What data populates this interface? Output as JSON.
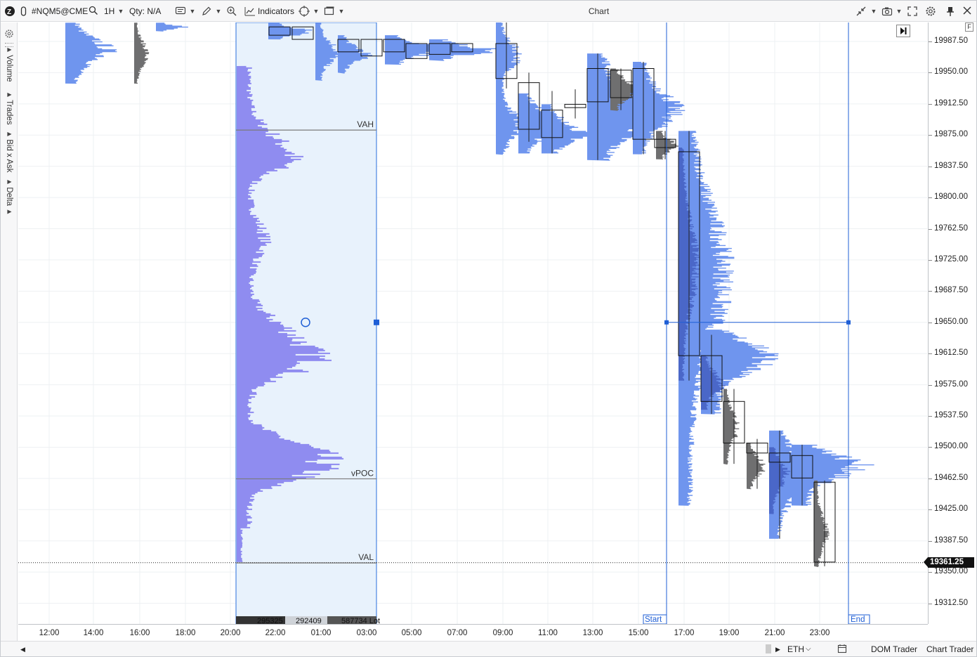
{
  "toolbar": {
    "symbol": "#NQM5@CME",
    "timeframe": "1H",
    "qty_label": "Qty: N/A",
    "indicators_label": "Indicators",
    "chart_title": "Chart"
  },
  "left_panel": {
    "tabs": [
      "Volume",
      "Trades",
      "Bid x Ask",
      "Delta"
    ]
  },
  "price_axis": {
    "ticks": [
      "19987.50",
      "19950.00",
      "19912.50",
      "19875.00",
      "19837.50",
      "19800.00",
      "19762.50",
      "19725.00",
      "19687.50",
      "19650.00",
      "19612.50",
      "19575.00",
      "19537.50",
      "19500.00",
      "19462.50",
      "19425.00",
      "19387.50",
      "19350.00",
      "19312.50"
    ],
    "tick_values": [
      19987.5,
      19950,
      19912.5,
      19875,
      19837.5,
      19800,
      19762.5,
      19725,
      19687.5,
      19650,
      19612.5,
      19575,
      19537.5,
      19500,
      19462.5,
      19425,
      19387.5,
      19350,
      19312.5
    ],
    "current_price": "19361.25",
    "current_price_value": 19361.25
  },
  "time_axis": {
    "ticks": [
      "12:00",
      "14:00",
      "16:00",
      "18:00",
      "20:00",
      "22:00",
      "01:00",
      "03:00",
      "05:00",
      "07:00",
      "09:00",
      "11:00",
      "13:00",
      "15:00",
      "17:00",
      "19:00",
      "21:00",
      "23:00"
    ]
  },
  "profile": {
    "vah_label": "VAH",
    "vpoc_label": "vPOC",
    "val_label": "VAL",
    "vah_price": 19881,
    "vpoc_price": 19462,
    "val_price": 19361,
    "footer_left": "295325",
    "footer_mid": "292409",
    "footer_right": "587734 Lot"
  },
  "range_markers": {
    "start_label": "Start",
    "end_label": "End",
    "level_price": 19650
  },
  "statusbar": {
    "session": "ETH",
    "dom_trader": "DOM Trader",
    "chart_trader": "Chart Trader"
  },
  "colors": {
    "profile_fill": "#8f8cf0",
    "bar_profile": "#6f95ee",
    "gray_profile": "#6f6f70",
    "selection_bg": "#e8f2fc",
    "line_blue": "#1f5fd6"
  },
  "candles": [
    {
      "t": "09:00",
      "o": 19985,
      "c": 19943,
      "h": 20011,
      "l": 19931
    },
    {
      "t": "10:00",
      "o": 19938,
      "c": 19882,
      "h": 19950,
      "l": 19867
    },
    {
      "t": "10:00b",
      "o": 19905,
      "c": 19872,
      "h": 19928,
      "l": 19853
    },
    {
      "t": "11:00",
      "o": 19912,
      "c": 19908,
      "h": 19930,
      "l": 19895
    },
    {
      "t": "13:00",
      "o": 19955,
      "c": 19915,
      "h": 19973,
      "l": 19845
    },
    {
      "t": "14:00",
      "o": 19953,
      "c": 19920,
      "h": 19955,
      "l": 19905
    },
    {
      "t": "15:00",
      "o": 19955,
      "c": 19870,
      "h": 19963,
      "l": 19852
    },
    {
      "t": "16:00",
      "o": 19870,
      "c": 19860,
      "h": 19880,
      "l": 19846
    },
    {
      "t": "17:00",
      "o": 19855,
      "c": 19610,
      "h": 19880,
      "l": 19580
    },
    {
      "t": "18:00",
      "o": 19610,
      "c": 19555,
      "h": 19635,
      "l": 19540
    },
    {
      "t": "19:00",
      "o": 19555,
      "c": 19505,
      "h": 19570,
      "l": 19480
    },
    {
      "t": "20:00",
      "o": 19505,
      "c": 19493,
      "h": 19510,
      "l": 19450
    },
    {
      "t": "21:00",
      "o": 19493,
      "c": 19482,
      "h": 19520,
      "l": 19390
    },
    {
      "t": "22:00",
      "o": 19490,
      "c": 19463,
      "h": 19503,
      "l": 19430
    },
    {
      "t": "23:00",
      "o": 19458,
      "c": 19362,
      "h": 19460,
      "l": 19357
    }
  ]
}
